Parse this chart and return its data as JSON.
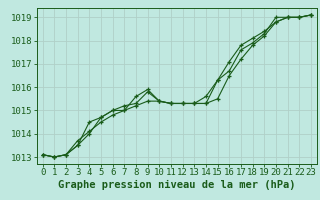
{
  "title": "Graphe pression niveau de la mer (hPa)",
  "bg_color": "#c0e8e0",
  "grid_color": "#b0d0c8",
  "line_color": "#1a5c1a",
  "marker_color": "#1a5c1a",
  "x_ticks": [
    0,
    1,
    2,
    3,
    4,
    5,
    6,
    7,
    8,
    9,
    10,
    11,
    12,
    13,
    14,
    15,
    16,
    17,
    18,
    19,
    20,
    21,
    22,
    23
  ],
  "y_ticks": [
    1013,
    1014,
    1015,
    1016,
    1017,
    1018,
    1019
  ],
  "ylim": [
    1012.7,
    1019.4
  ],
  "xlim": [
    -0.5,
    23.5
  ],
  "series1": [
    1013.1,
    1013.0,
    1013.1,
    1013.5,
    1014.5,
    1014.7,
    1015.0,
    1015.0,
    1015.6,
    1015.9,
    1015.4,
    1015.3,
    1015.3,
    1015.3,
    1015.6,
    1016.3,
    1017.1,
    1017.8,
    1018.1,
    1018.4,
    1018.8,
    1019.0,
    1019.0,
    1019.1
  ],
  "series2": [
    1013.1,
    1013.0,
    1013.1,
    1013.7,
    1014.1,
    1014.5,
    1014.8,
    1015.0,
    1015.2,
    1015.4,
    1015.4,
    1015.3,
    1015.3,
    1015.3,
    1015.3,
    1015.5,
    1016.5,
    1017.2,
    1017.8,
    1018.2,
    1018.8,
    1019.0,
    1019.0,
    1019.1
  ],
  "series3": [
    1013.1,
    1013.0,
    1013.1,
    1013.5,
    1014.0,
    1014.7,
    1015.0,
    1015.2,
    1015.3,
    1015.8,
    1015.4,
    1015.3,
    1015.3,
    1015.3,
    1015.3,
    1016.3,
    1016.7,
    1017.6,
    1017.9,
    1018.3,
    1019.0,
    1019.0,
    1019.0,
    1019.1
  ],
  "title_fontsize": 7.5,
  "tick_fontsize": 6.5
}
